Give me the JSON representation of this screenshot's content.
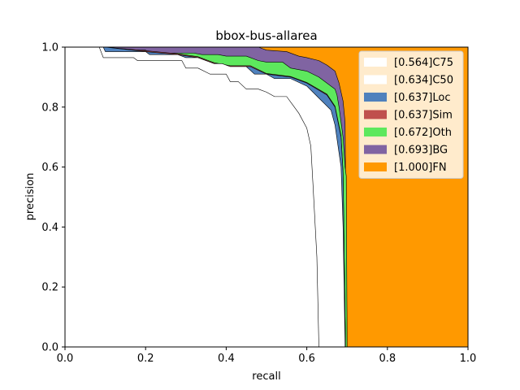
{
  "chart_data": {
    "type": "area",
    "title": "bbox-bus-allarea",
    "xlabel": "recall",
    "ylabel": "precision",
    "xlim": [
      0,
      1
    ],
    "ylim": [
      0,
      1
    ],
    "xticks": [
      "0.0",
      "0.2",
      "0.4",
      "0.6",
      "0.8",
      "1.0"
    ],
    "yticks": [
      "0.0",
      "0.2",
      "0.4",
      "0.6",
      "0.8",
      "1.0"
    ],
    "grid": false,
    "legend_position": "top-right",
    "series": [
      {
        "name": "[0.564]C75",
        "color": "#ffffff",
        "points": [
          [
            0,
            1
          ],
          [
            0.085,
            1
          ],
          [
            0.095,
            0.965
          ],
          [
            0.17,
            0.965
          ],
          [
            0.18,
            0.955
          ],
          [
            0.29,
            0.955
          ],
          [
            0.3,
            0.93
          ],
          [
            0.33,
            0.93
          ],
          [
            0.36,
            0.91
          ],
          [
            0.4,
            0.91
          ],
          [
            0.41,
            0.885
          ],
          [
            0.43,
            0.885
          ],
          [
            0.45,
            0.86
          ],
          [
            0.48,
            0.86
          ],
          [
            0.5,
            0.85
          ],
          [
            0.52,
            0.835
          ],
          [
            0.55,
            0.835
          ],
          [
            0.58,
            0.78
          ],
          [
            0.6,
            0.73
          ],
          [
            0.61,
            0.67
          ],
          [
            0.615,
            0.55
          ],
          [
            0.625,
            0.3
          ],
          [
            0.63,
            0
          ]
        ]
      },
      {
        "name": "[0.634]C50",
        "color": "#ffffff",
        "points": [
          [
            0,
            1
          ],
          [
            0.095,
            1
          ],
          [
            0.1,
            0.985
          ],
          [
            0.2,
            0.985
          ],
          [
            0.21,
            0.975
          ],
          [
            0.28,
            0.975
          ],
          [
            0.3,
            0.965
          ],
          [
            0.33,
            0.965
          ],
          [
            0.37,
            0.945
          ],
          [
            0.39,
            0.945
          ],
          [
            0.41,
            0.935
          ],
          [
            0.45,
            0.935
          ],
          [
            0.47,
            0.91
          ],
          [
            0.5,
            0.91
          ],
          [
            0.52,
            0.895
          ],
          [
            0.56,
            0.895
          ],
          [
            0.6,
            0.87
          ],
          [
            0.63,
            0.83
          ],
          [
            0.66,
            0.79
          ],
          [
            0.67,
            0.74
          ],
          [
            0.685,
            0.6
          ],
          [
            0.69,
            0.4
          ],
          [
            0.695,
            0
          ]
        ]
      },
      {
        "name": "[0.637]Loc",
        "color": "#4f81bd",
        "points": [
          [
            0,
            1
          ],
          [
            0.1,
            1
          ],
          [
            0.2,
            0.985
          ],
          [
            0.28,
            0.975
          ],
          [
            0.33,
            0.965
          ],
          [
            0.37,
            0.945
          ],
          [
            0.41,
            0.935
          ],
          [
            0.46,
            0.935
          ],
          [
            0.5,
            0.91
          ],
          [
            0.56,
            0.9
          ],
          [
            0.6,
            0.88
          ],
          [
            0.65,
            0.84
          ],
          [
            0.67,
            0.8
          ],
          [
            0.685,
            0.7
          ],
          [
            0.69,
            0.58
          ],
          [
            0.696,
            0
          ]
        ]
      },
      {
        "name": "[0.637]Sim",
        "color": "#c0504d",
        "points": [
          [
            0,
            1
          ],
          [
            0.1,
            1
          ],
          [
            0.2,
            0.988
          ],
          [
            0.28,
            0.978
          ],
          [
            0.33,
            0.968
          ],
          [
            0.37,
            0.948
          ],
          [
            0.41,
            0.938
          ],
          [
            0.46,
            0.938
          ],
          [
            0.5,
            0.912
          ],
          [
            0.56,
            0.902
          ],
          [
            0.6,
            0.882
          ],
          [
            0.65,
            0.843
          ],
          [
            0.67,
            0.803
          ],
          [
            0.685,
            0.705
          ],
          [
            0.69,
            0.585
          ],
          [
            0.696,
            0
          ]
        ]
      },
      {
        "name": "[0.672]Oth",
        "color": "#5de85d",
        "points": [
          [
            0,
            1
          ],
          [
            0.1,
            1
          ],
          [
            0.11,
            0.99
          ],
          [
            0.2,
            0.99
          ],
          [
            0.21,
            0.98
          ],
          [
            0.32,
            0.98
          ],
          [
            0.34,
            0.975
          ],
          [
            0.38,
            0.975
          ],
          [
            0.4,
            0.97
          ],
          [
            0.45,
            0.97
          ],
          [
            0.48,
            0.955
          ],
          [
            0.5,
            0.95
          ],
          [
            0.54,
            0.95
          ],
          [
            0.56,
            0.93
          ],
          [
            0.6,
            0.92
          ],
          [
            0.63,
            0.9
          ],
          [
            0.66,
            0.87
          ],
          [
            0.67,
            0.86
          ],
          [
            0.675,
            0.84
          ],
          [
            0.68,
            0.8
          ],
          [
            0.69,
            0.7
          ],
          [
            0.695,
            0.6
          ],
          [
            0.698,
            0.57
          ],
          [
            0.7,
            0
          ]
        ]
      },
      {
        "name": "[0.693]BG",
        "color": "#8064a2",
        "points": [
          [
            0,
            1
          ],
          [
            0.1,
            1
          ],
          [
            0.2,
            1
          ],
          [
            0.4,
            1
          ],
          [
            0.48,
            1
          ],
          [
            0.49,
            0.995
          ],
          [
            0.5,
            0.99
          ],
          [
            0.55,
            0.985
          ],
          [
            0.58,
            0.97
          ],
          [
            0.6,
            0.965
          ],
          [
            0.63,
            0.955
          ],
          [
            0.65,
            0.94
          ],
          [
            0.67,
            0.92
          ],
          [
            0.675,
            0.9
          ],
          [
            0.68,
            0.88
          ],
          [
            0.69,
            0.82
          ],
          [
            0.695,
            0.75
          ],
          [
            0.7,
            0
          ]
        ]
      },
      {
        "name": "[1.000]FN",
        "color": "#ff9900",
        "points": [
          [
            0,
            1
          ],
          [
            1,
            1
          ],
          [
            1,
            0
          ]
        ]
      }
    ]
  }
}
